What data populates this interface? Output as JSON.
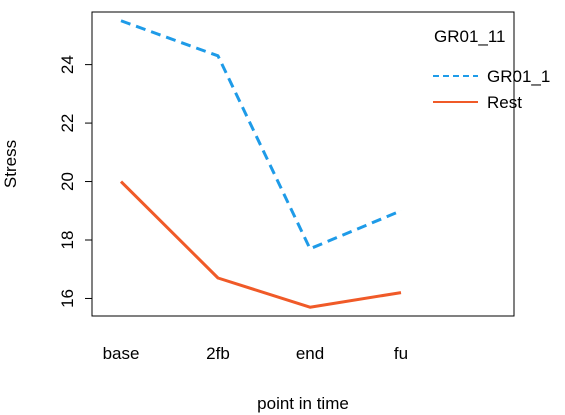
{
  "chart_data": {
    "type": "line",
    "categories": [
      "base",
      "2fb",
      "end",
      "fu"
    ],
    "xlabel": "point in time",
    "ylabel": "Stress",
    "ylim": [
      15.4,
      25.8
    ],
    "yticks": [
      16,
      18,
      20,
      22,
      24
    ],
    "grid": false,
    "legend": {
      "title": "GR01_11",
      "placement": "top-right"
    },
    "series": [
      {
        "name": "GR01_1",
        "values": [
          25.5,
          24.3,
          17.7,
          19.0
        ],
        "color": "#1E9BE8",
        "style": "dashed"
      },
      {
        "name": "Rest",
        "values": [
          20.0,
          16.7,
          15.7,
          16.2
        ],
        "color": "#F05A28",
        "style": "solid"
      }
    ]
  }
}
